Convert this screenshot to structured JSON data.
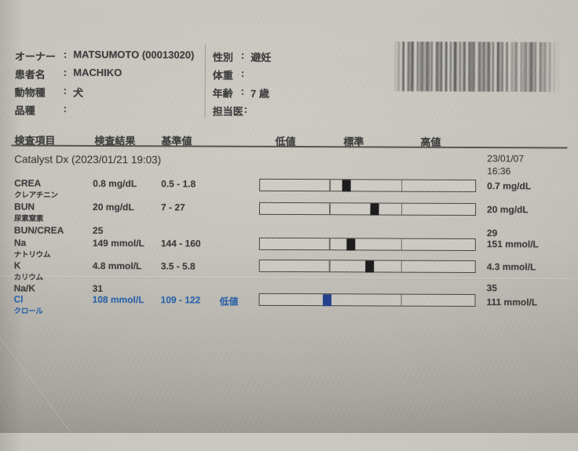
{
  "colors": {
    "ink": "#3c3c3c",
    "abnormal_low_text": "#2b63a8",
    "marker_black": "#1b1b1b",
    "marker_blue": "#24408c",
    "paper": "#c5c2bb"
  },
  "patient": {
    "left": [
      {
        "label": "オーナー",
        "colon": ":",
        "value": "MATSUMOTO (00013020)"
      },
      {
        "label": "患者名",
        "colon": ":",
        "value": "MACHIKO"
      },
      {
        "label": "動物種",
        "colon": ":",
        "value": "犬"
      },
      {
        "label": "品種",
        "colon": ":",
        "value": ""
      }
    ],
    "right": [
      {
        "label": "性別",
        "colon": ":",
        "value": "避妊"
      },
      {
        "label": "体重",
        "colon": ":",
        "value": ""
      },
      {
        "label": "年齢",
        "colon": ":",
        "value": "7 歳"
      },
      {
        "label": "担当医",
        "colon": ":",
        "value": ""
      }
    ]
  },
  "table": {
    "headers": {
      "item": "検査項目",
      "result": "検査結果",
      "reference": "基準値",
      "low": "低値",
      "normal": "標準",
      "high": "高値"
    },
    "analyzer_line": "Catalyst Dx (2023/01/21 19:03)",
    "previous": {
      "date": "23/01/07",
      "time": "16:36"
    },
    "rows": [
      {
        "code": "CREA",
        "kana": "クレアチニン",
        "result": "0.8 mg/dL",
        "range": "0.5 - 1.8",
        "flag": "",
        "prev": "0.7 mg/dL",
        "bar": {
          "marker_pct": 40.2,
          "marker": "black"
        }
      },
      {
        "code": "BUN",
        "kana": "尿素窒素",
        "result": "20 mg/dL",
        "range": "7 - 27",
        "flag": "",
        "prev": "20 mg/dL",
        "bar": {
          "marker_pct": 53.4,
          "marker": "black"
        }
      },
      {
        "code": "BUN/CREA",
        "kana": "",
        "result": "25",
        "range": "",
        "flag": "",
        "prev": "29",
        "bar": null
      },
      {
        "code": "Na",
        "kana": "ナトリウム",
        "result": "149 mmol/L",
        "range": "144 - 160",
        "flag": "",
        "prev": "151 mmol/L",
        "bar": {
          "marker_pct": 42.4,
          "marker": "black"
        }
      },
      {
        "code": "K",
        "kana": "カリウム",
        "result": "4.8 mmol/L",
        "range": "3.5 - 5.8",
        "flag": "",
        "prev": "4.3 mmol/L",
        "bar": {
          "marker_pct": 51.1,
          "marker": "black"
        }
      },
      {
        "code": "Na/K",
        "kana": "",
        "result": "31",
        "range": "",
        "flag": "",
        "prev": "35",
        "bar": null
      },
      {
        "code": "Cl",
        "kana": "クロール",
        "result": "108 mmol/L",
        "range": "109 - 122",
        "flag": "低値",
        "prev": "111 mmol/L",
        "bar": {
          "marker_pct": 31.5,
          "marker": "blue"
        },
        "abnormal": "low"
      }
    ]
  }
}
